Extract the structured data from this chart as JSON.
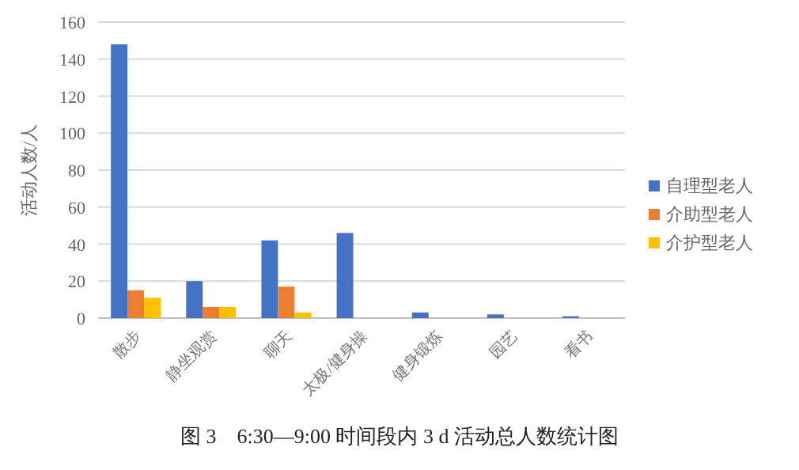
{
  "chart_data": {
    "type": "bar",
    "title": "图 3　6:30—9:00 时间段内 3 d 活动总人数统计图",
    "ylabel": "活动人数/人",
    "categories": [
      "散步",
      "静坐观赏",
      "聊天",
      "太极/健身操",
      "健身锻炼",
      "园艺",
      "看书"
    ],
    "series": [
      {
        "name": "自理型老人",
        "color": "#4472c4",
        "values": [
          148,
          20,
          42,
          46,
          3,
          2,
          1
        ]
      },
      {
        "name": "介助型老人",
        "color": "#ed7d31",
        "values": [
          15,
          6,
          17,
          0,
          0,
          0,
          0
        ]
      },
      {
        "name": "介护型老人",
        "color": "#ffc000",
        "values": [
          11,
          6,
          3,
          0,
          0,
          0,
          0
        ]
      }
    ],
    "ylim": [
      0,
      160
    ],
    "yticks": [
      0,
      20,
      40,
      60,
      80,
      100,
      120,
      140,
      160
    ],
    "grid": "y",
    "legend": "right"
  }
}
